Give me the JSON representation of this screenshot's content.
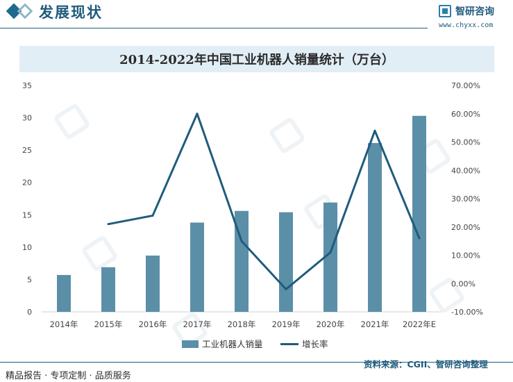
{
  "header": {
    "section_title": "发展现状",
    "logo_text": "智研咨询",
    "logo_url": "www.chyxx.com"
  },
  "footer": {
    "left": "精品报告 · 专项定制 · 品质服务",
    "right": "资料来源：CGII、智研咨询整理"
  },
  "chart_data": {
    "type": "bar",
    "title": "2014-2022年中国工业机器人销量统计（万台）",
    "categories": [
      "2014年",
      "2015年",
      "2016年",
      "2017年",
      "2018年",
      "2019年",
      "2020年",
      "2021年",
      "2022年E"
    ],
    "series": [
      {
        "name": "工业机器人销量",
        "type": "bar",
        "axis": "left",
        "color": "#5b8fa8",
        "values": [
          5.7,
          6.9,
          8.7,
          13.8,
          15.6,
          15.4,
          16.9,
          26.1,
          30.3
        ]
      },
      {
        "name": "增长率",
        "type": "line",
        "axis": "right",
        "color": "#1f5b7c",
        "values": [
          null,
          21.0,
          24.0,
          60.0,
          15.0,
          -2.0,
          11.0,
          54.0,
          16.0
        ]
      }
    ],
    "y_left": {
      "min": 0,
      "max": 35,
      "ticks": [
        "0",
        "5",
        "10",
        "15",
        "20",
        "25",
        "30",
        "35"
      ]
    },
    "y_right": {
      "min": -10,
      "max": 70,
      "ticks": [
        "-10.00%",
        "0.00%",
        "10.00%",
        "20.00%",
        "30.00%",
        "40.00%",
        "50.00%",
        "60.00%",
        "70.00%"
      ]
    },
    "grid": false,
    "legend": "bottom-center"
  }
}
